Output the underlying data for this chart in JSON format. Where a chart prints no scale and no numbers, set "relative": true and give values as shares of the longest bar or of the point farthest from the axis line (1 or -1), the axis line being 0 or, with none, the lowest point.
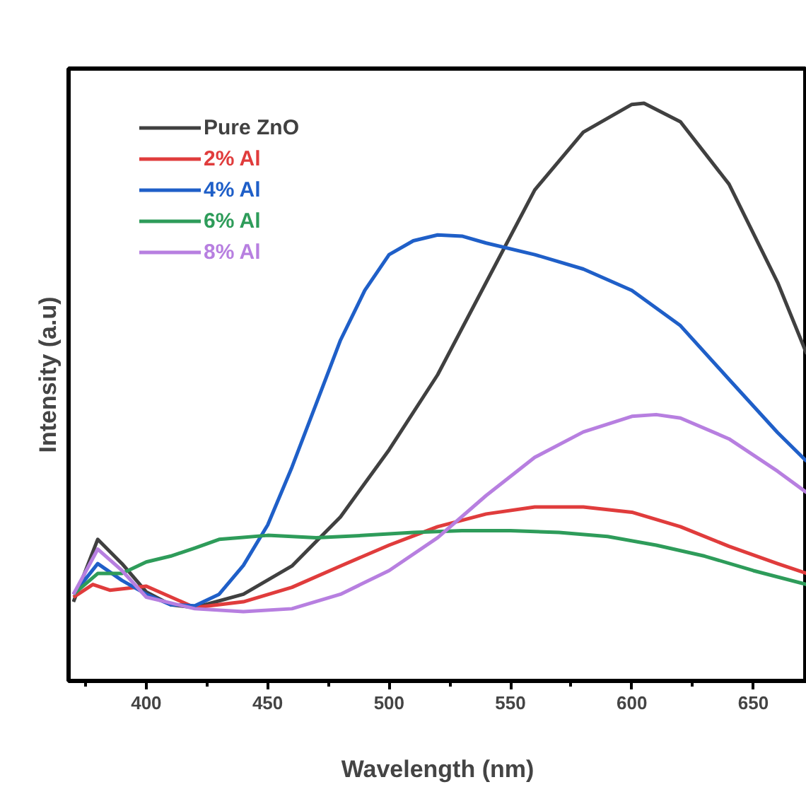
{
  "chart_data": {
    "type": "line",
    "xlabel": "Wavelength (nm)",
    "ylabel": "Intensity (a.u)",
    "relative": true,
    "xlim": [
      368,
      672
    ],
    "xticks": [
      400,
      450,
      500,
      550,
      600,
      650
    ],
    "tick_labels": "x",
    "grid": false,
    "legend": "top left",
    "marker": "none",
    "line_style": "solid",
    "series": [
      {
        "name": "Pure ZnO",
        "color": "#404040",
        "x": [
          370,
          380,
          390,
          400,
          410,
          420,
          440,
          460,
          480,
          500,
          520,
          540,
          560,
          580,
          600,
          605,
          620,
          640,
          660,
          672
        ],
        "values": [
          0.137,
          0.245,
          0.203,
          0.154,
          0.132,
          0.127,
          0.15,
          0.199,
          0.284,
          0.4,
          0.53,
          0.69,
          0.85,
          0.95,
          0.998,
          1,
          0.968,
          0.86,
          0.69,
          0.566
        ]
      },
      {
        "name": "2% Al",
        "color": "#e03c3c",
        "x": [
          370,
          378,
          385,
          400,
          420,
          440,
          460,
          480,
          500,
          520,
          540,
          560,
          580,
          600,
          620,
          640,
          660,
          672
        ],
        "values": [
          0.145,
          0.167,
          0.157,
          0.164,
          0.127,
          0.137,
          0.162,
          0.199,
          0.235,
          0.267,
          0.289,
          0.301,
          0.301,
          0.292,
          0.267,
          0.233,
          0.203,
          0.186
        ]
      },
      {
        "name": "4% Al",
        "color": "#1f5fc8",
        "x": [
          370,
          380,
          390,
          400,
          410,
          420,
          430,
          440,
          450,
          460,
          470,
          480,
          490,
          500,
          510,
          520,
          530,
          540,
          560,
          580,
          600,
          620,
          640,
          660,
          672
        ],
        "values": [
          0.15,
          0.203,
          0.174,
          0.15,
          0.132,
          0.13,
          0.15,
          0.2,
          0.27,
          0.37,
          0.48,
          0.59,
          0.676,
          0.738,
          0.762,
          0.772,
          0.77,
          0.758,
          0.738,
          0.713,
          0.676,
          0.615,
          0.522,
          0.43,
          0.38
        ]
      },
      {
        "name": "6% Al",
        "color": "#2e9c5a",
        "x": [
          370,
          380,
          390,
          400,
          410,
          420,
          430,
          450,
          470,
          490,
          510,
          530,
          550,
          570,
          590,
          610,
          630,
          650,
          672
        ],
        "values": [
          0.15,
          0.186,
          0.186,
          0.206,
          0.216,
          0.23,
          0.245,
          0.252,
          0.248,
          0.252,
          0.257,
          0.26,
          0.26,
          0.257,
          0.25,
          0.235,
          0.216,
          0.191,
          0.167
        ]
      },
      {
        "name": "8% Al",
        "color": "#b77fe0",
        "x": [
          370,
          380,
          390,
          400,
          420,
          440,
          460,
          480,
          500,
          520,
          540,
          560,
          580,
          600,
          610,
          620,
          640,
          660,
          672
        ],
        "values": [
          0.15,
          0.228,
          0.191,
          0.145,
          0.125,
          0.12,
          0.125,
          0.15,
          0.191,
          0.248,
          0.321,
          0.387,
          0.431,
          0.458,
          0.461,
          0.455,
          0.419,
          0.363,
          0.326
        ]
      }
    ]
  }
}
